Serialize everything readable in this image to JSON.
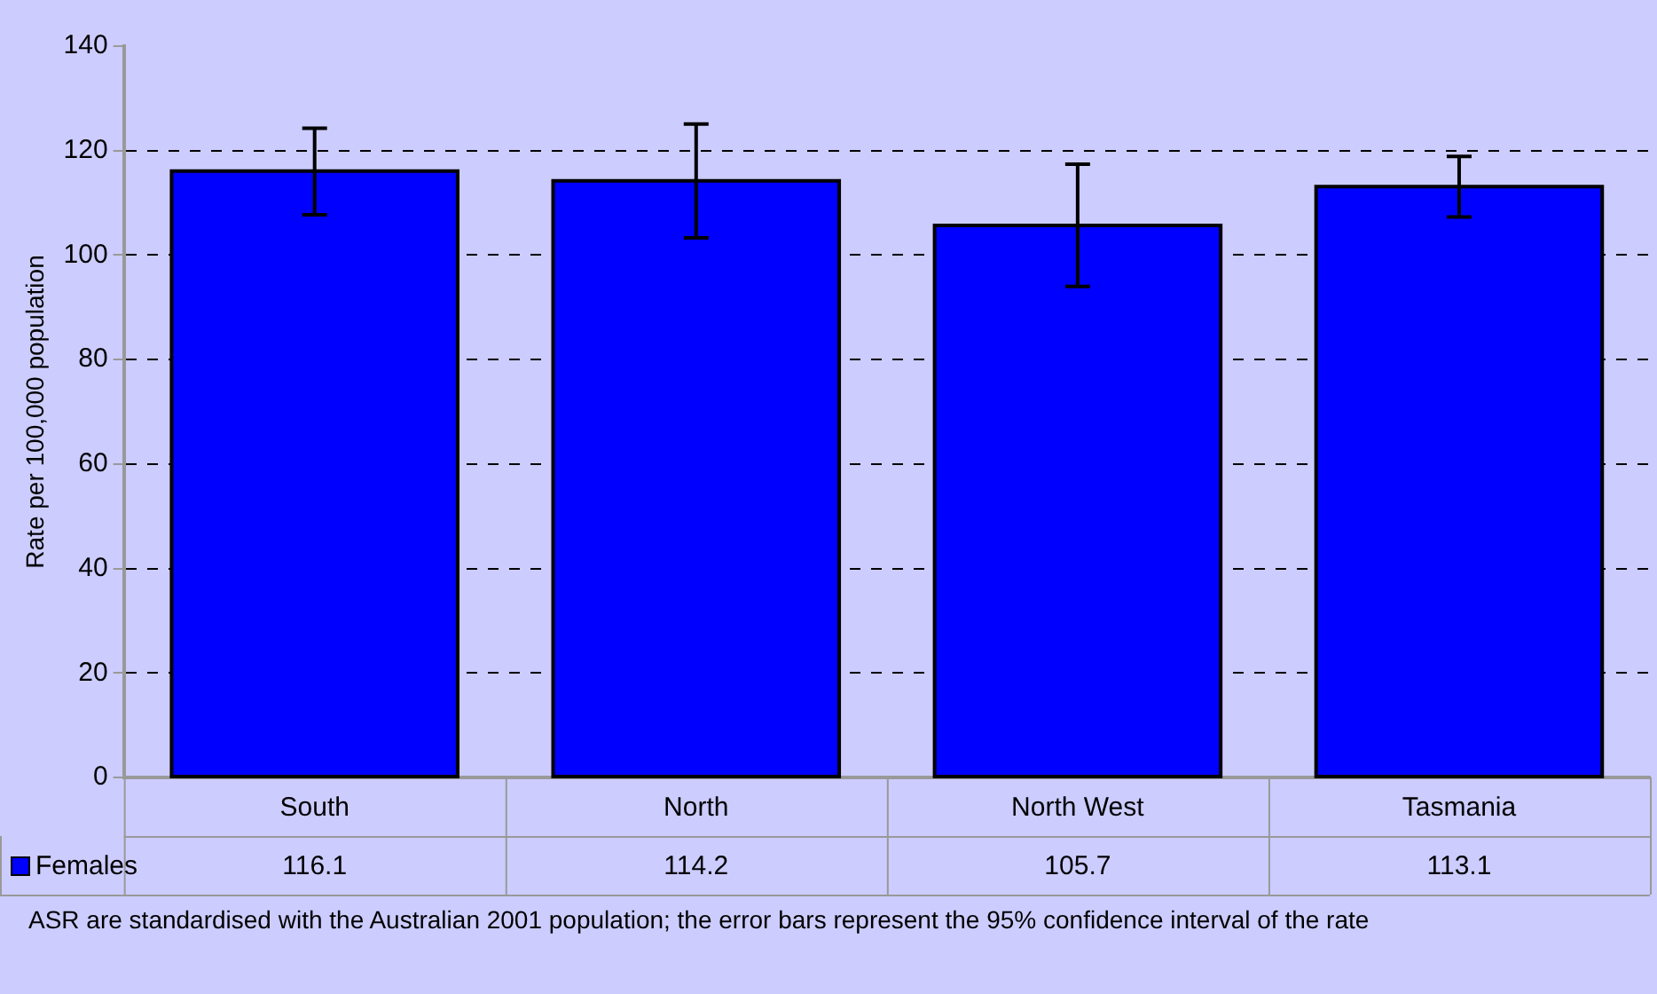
{
  "chart_data": {
    "type": "bar",
    "ylabel": "Rate per 100,000 population",
    "categories": [
      "South",
      "North",
      "North West",
      "Tasmania"
    ],
    "series": [
      {
        "name": "Females",
        "color": "#0000ff",
        "values": [
          116.1,
          114.2,
          105.7,
          113.1
        ],
        "errors": [
          [
            107.7,
            124.3
          ],
          [
            103.3,
            125.1
          ],
          [
            94.0,
            117.4
          ],
          [
            107.3,
            118.9
          ]
        ]
      }
    ],
    "ylim": [
      0,
      140
    ],
    "yticks": [
      0,
      20,
      40,
      60,
      80,
      100,
      120,
      140
    ],
    "grid": "y",
    "legend": "bottom",
    "data_labels": true,
    "annotations": [
      "ASR are standardised with the Australian 2001 population; the error bars represent the 95% confidence interval of the rate"
    ]
  }
}
